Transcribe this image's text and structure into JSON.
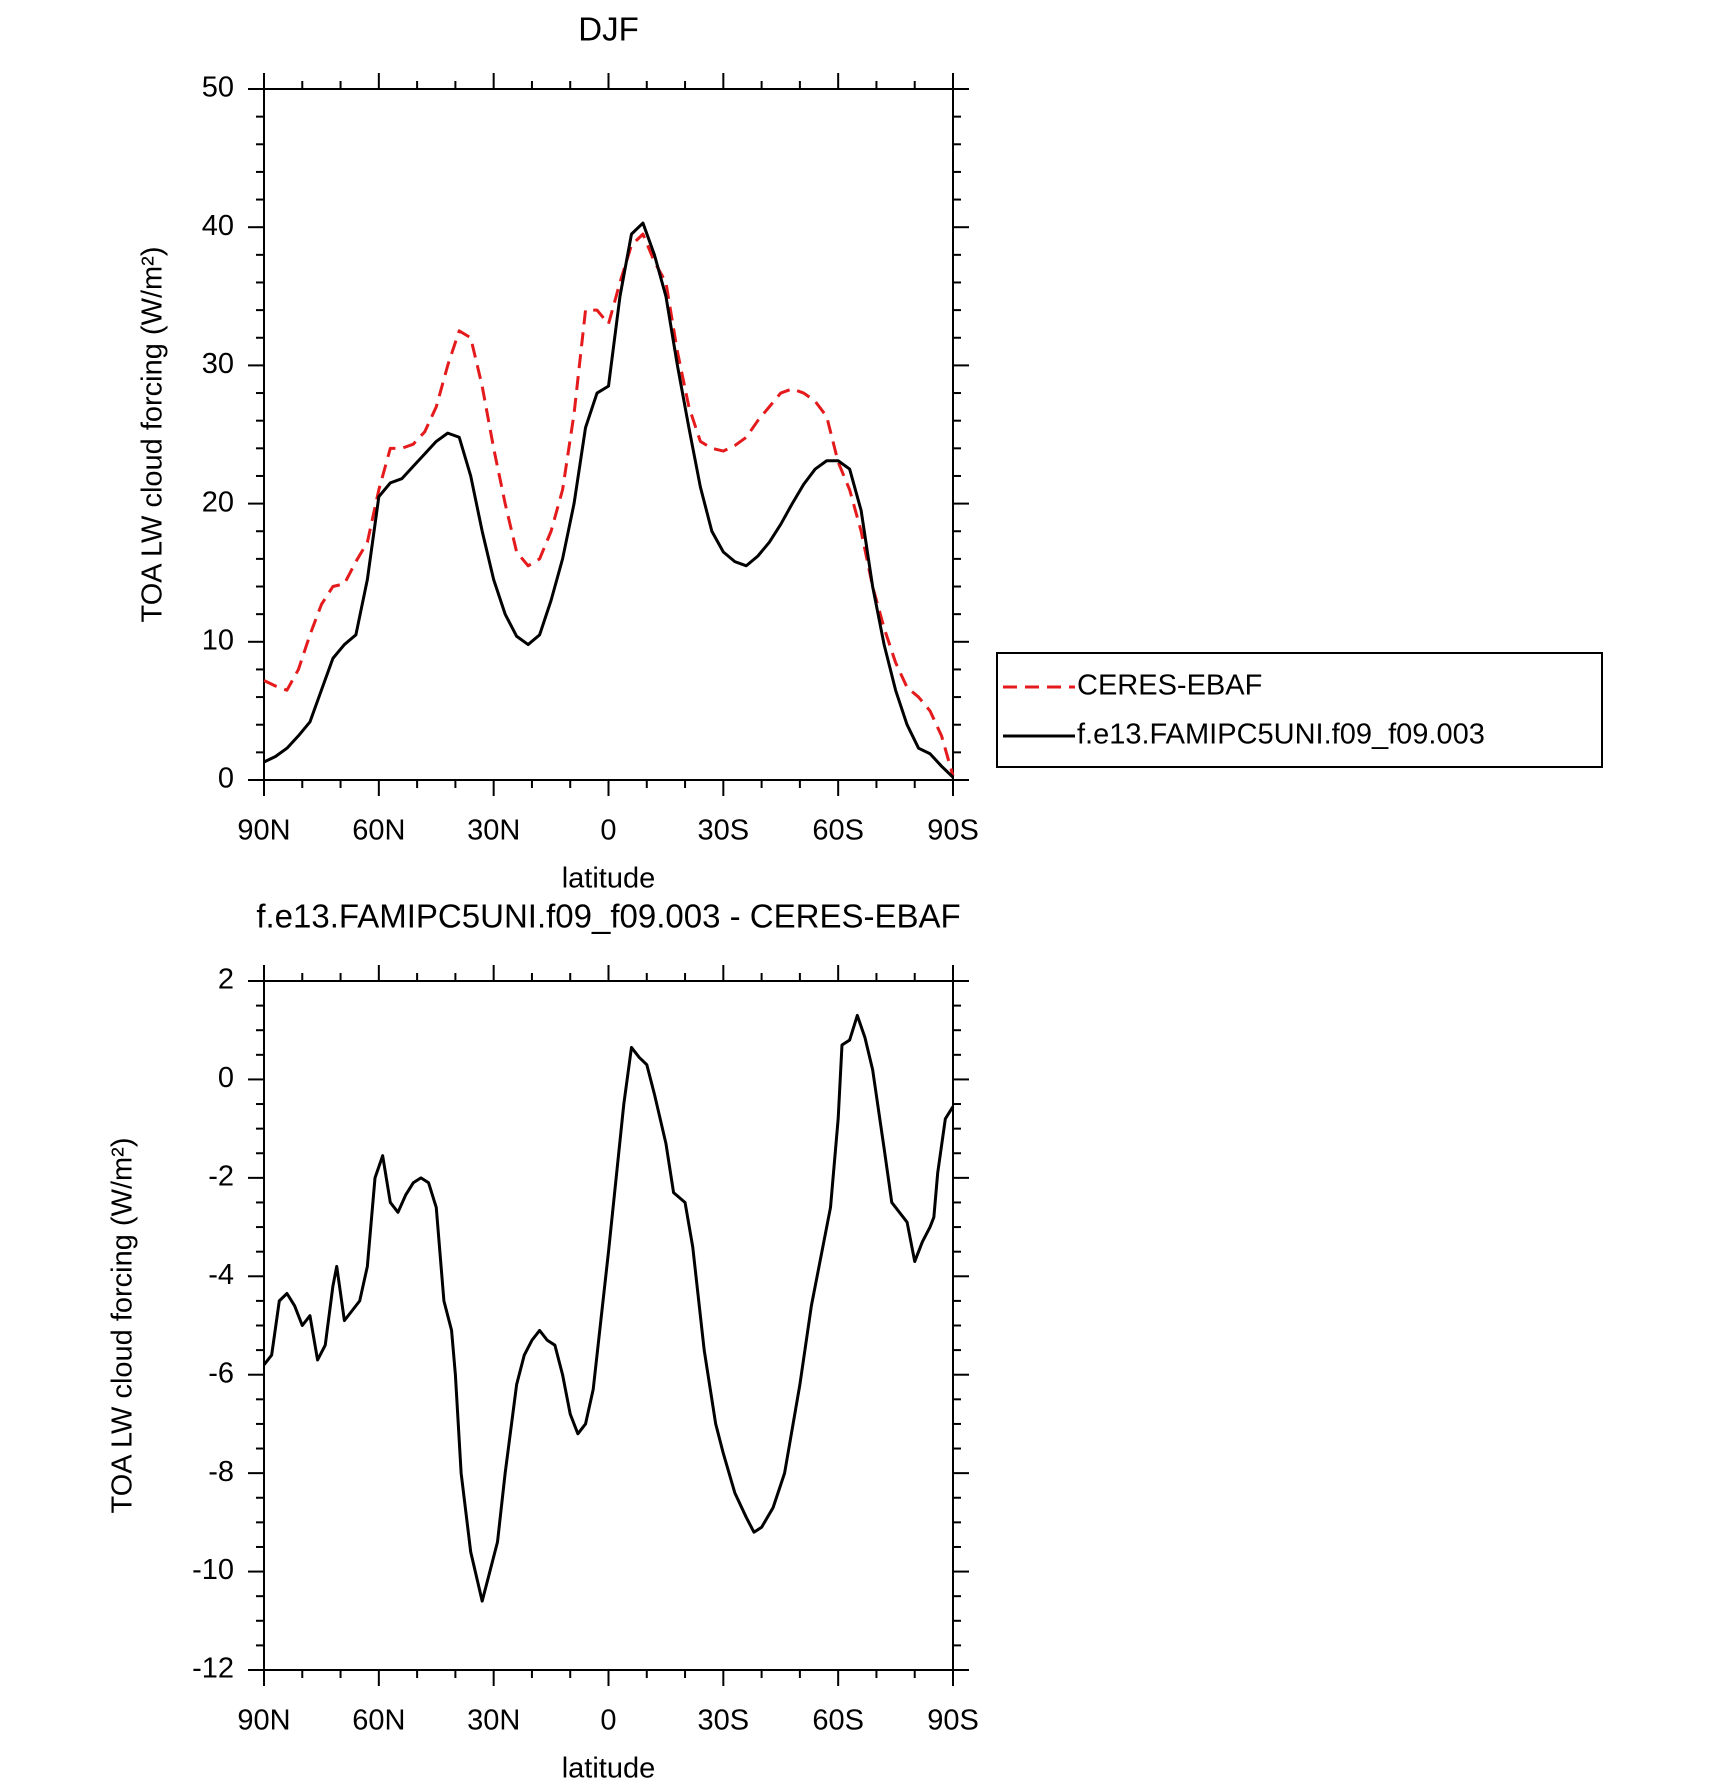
{
  "chart_data": [
    {
      "type": "line",
      "title": "DJF",
      "x_label": "latitude",
      "y_label": "TOA LW cloud forcing (W/m²)",
      "x": [
        90,
        87,
        84,
        81,
        78,
        75,
        72,
        69,
        66,
        63,
        60,
        57,
        54,
        51,
        48,
        45,
        42,
        39,
        36,
        33,
        30,
        27,
        24,
        21,
        18,
        15,
        12,
        9,
        6,
        3,
        0,
        -3,
        -6,
        -9,
        -12,
        -15,
        -18,
        -21,
        -24,
        -27,
        -30,
        -33,
        -36,
        -39,
        -42,
        -45,
        -48,
        -51,
        -54,
        -57,
        -60,
        -63,
        -66,
        -69,
        -72,
        -75,
        -78,
        -81,
        -84,
        -87,
        -90
      ],
      "series": [
        {
          "name": "CERES-EBAF",
          "color": "#e41a1c",
          "dash": true,
          "values": [
            7.2,
            6.8,
            6.5,
            8,
            10.5,
            12.7,
            14,
            14.2,
            15.8,
            17.2,
            21,
            24,
            24,
            24.3,
            25.2,
            27,
            30,
            32.5,
            32,
            28.5,
            24,
            20,
            16.5,
            15.5,
            16,
            18,
            21,
            26.5,
            34,
            34,
            33,
            36,
            38.7,
            39.5,
            37.5,
            36,
            31,
            27,
            24.5,
            24,
            23.8,
            24.2,
            24.8,
            26,
            27,
            28,
            28.3,
            28,
            27.4,
            26.3,
            23,
            21,
            18,
            14,
            11,
            8.5,
            6.7,
            6,
            5,
            3.2,
            0.3
          ]
        },
        {
          "name": "f.e13.FAMIPC5UNI.f09_f09.003",
          "color": "#000000",
          "dash": false,
          "values": [
            1.3,
            1.7,
            2.3,
            3.2,
            4.2,
            6.5,
            8.8,
            9.8,
            10.5,
            14.5,
            20.5,
            21.5,
            21.8,
            22.7,
            23.6,
            24.5,
            25.1,
            24.8,
            22,
            18,
            14.5,
            12,
            10.4,
            9.8,
            10.5,
            13,
            16,
            20,
            25.5,
            28,
            28.5,
            35,
            39.5,
            40.3,
            38,
            35,
            30,
            25.5,
            21.2,
            18,
            16.5,
            15.8,
            15.5,
            16.2,
            17.2,
            18.5,
            20,
            21.4,
            22.5,
            23.1,
            23.1,
            22.5,
            19.5,
            14,
            9.8,
            6.5,
            4,
            2.3,
            1.9,
            1,
            0.2
          ]
        }
      ],
      "xlim": [
        90,
        -90
      ],
      "xticks": [
        {
          "value": 90,
          "label": "90N"
        },
        {
          "value": 60,
          "label": "60N"
        },
        {
          "value": 30,
          "label": "30N"
        },
        0,
        {
          "value": -30,
          "label": "30S"
        },
        {
          "value": -60,
          "label": "60S"
        },
        {
          "value": -90,
          "label": "90S"
        }
      ],
      "ylim": [
        0,
        50
      ],
      "yticks": [
        0,
        10,
        20,
        30,
        40,
        50
      ],
      "legend": "outside right"
    },
    {
      "type": "line",
      "title": "f.e13.FAMIPC5UNI.f09_f09.003 - CERES-EBAF",
      "x_label": "latitude",
      "y_label": "TOA LW cloud forcing (W/m²)",
      "x": [
        90,
        88,
        86,
        84,
        82,
        80,
        78,
        76,
        74,
        72,
        71,
        69,
        67,
        65,
        63,
        61,
        59,
        57,
        55,
        53,
        51,
        49,
        47,
        45,
        43,
        41,
        40,
        38.5,
        36,
        33,
        31,
        29,
        27,
        24,
        22,
        20,
        18,
        16,
        14,
        12,
        10,
        8,
        6,
        4,
        2,
        0,
        -2,
        -4,
        -6,
        -8,
        -10,
        -12,
        -15,
        -17,
        -20,
        -22,
        -25,
        -28,
        -30,
        -33,
        -36,
        -38,
        -40,
        -43,
        -46,
        -50,
        -53,
        -56,
        -58,
        -60,
        -61,
        -63,
        -65,
        -67,
        -69,
        -72,
        -74,
        -76,
        -78,
        -80,
        -82,
        -84,
        -85,
        -86,
        -88,
        -90
      ],
      "series": [
        {
          "color": "#000000",
          "dash": false,
          "values": [
            -5.8,
            -5.6,
            -4.5,
            -4.35,
            -4.6,
            -5.0,
            -4.8,
            -5.7,
            -5.4,
            -4.2,
            -3.8,
            -4.9,
            -4.7,
            -4.5,
            -3.8,
            -2.0,
            -1.55,
            -2.5,
            -2.7,
            -2.35,
            -2.1,
            -2.0,
            -2.1,
            -2.6,
            -4.5,
            -5.1,
            -6.0,
            -8.0,
            -9.6,
            -10.6,
            -10.0,
            -9.4,
            -8.0,
            -6.2,
            -5.6,
            -5.3,
            -5.1,
            -5.3,
            -5.4,
            -6.0,
            -6.8,
            -7.2,
            -7.0,
            -6.3,
            -4.9,
            -3.5,
            -2.0,
            -0.5,
            0.65,
            0.45,
            0.3,
            -0.3,
            -1.3,
            -2.3,
            -2.5,
            -3.4,
            -5.5,
            -7.0,
            -7.6,
            -8.4,
            -8.9,
            -9.2,
            -9.1,
            -8.7,
            -8.0,
            -6.2,
            -4.6,
            -3.4,
            -2.6,
            -0.8,
            0.7,
            0.8,
            1.3,
            0.85,
            0.2,
            -1.4,
            -2.5,
            -2.7,
            -2.9,
            -3.7,
            -3.3,
            -3.0,
            -2.8,
            -1.9,
            -0.8,
            -0.55
          ]
        }
      ],
      "xlim": [
        90,
        -90
      ],
      "xticks": [
        {
          "value": 90,
          "label": "90N"
        },
        {
          "value": 60,
          "label": "60N"
        },
        {
          "value": 30,
          "label": "30N"
        },
        0,
        {
          "value": -30,
          "label": "30S"
        },
        {
          "value": -60,
          "label": "60S"
        },
        {
          "value": -90,
          "label": "90S"
        }
      ],
      "ylim": [
        -12,
        2
      ],
      "yticks": [
        -12,
        -10,
        -8,
        -6,
        -4,
        -2,
        0,
        2
      ]
    }
  ]
}
